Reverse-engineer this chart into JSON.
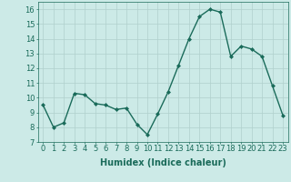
{
  "x": [
    0,
    1,
    2,
    3,
    4,
    5,
    6,
    7,
    8,
    9,
    10,
    11,
    12,
    13,
    14,
    15,
    16,
    17,
    18,
    19,
    20,
    21,
    22,
    23
  ],
  "y": [
    9.5,
    8.0,
    8.3,
    10.3,
    10.2,
    9.6,
    9.5,
    9.2,
    9.3,
    8.2,
    7.5,
    8.9,
    10.4,
    12.2,
    14.0,
    15.5,
    16.0,
    15.8,
    12.8,
    13.5,
    13.3,
    12.8,
    10.8,
    8.8
  ],
  "line_color": "#1a6b5a",
  "marker": "D",
  "marker_size": 2.0,
  "bg_color": "#cceae7",
  "grid_color": "#b0d0cc",
  "xlabel": "Humidex (Indice chaleur)",
  "ylabel_ticks": [
    7,
    8,
    9,
    10,
    11,
    12,
    13,
    14,
    15,
    16
  ],
  "xlim": [
    -0.5,
    23.5
  ],
  "ylim": [
    7,
    16.5
  ],
  "xticks": [
    0,
    1,
    2,
    3,
    4,
    5,
    6,
    7,
    8,
    9,
    10,
    11,
    12,
    13,
    14,
    15,
    16,
    17,
    18,
    19,
    20,
    21,
    22,
    23
  ],
  "axis_color": "#1a6b5a",
  "tick_color": "#1a6b5a",
  "label_fontsize": 7,
  "tick_fontsize": 6,
  "linewidth": 1.0
}
